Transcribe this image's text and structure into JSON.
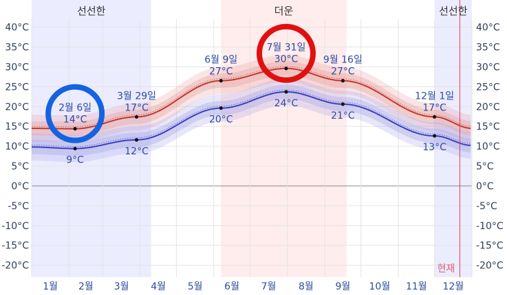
{
  "chart_data": {
    "type": "line",
    "title": "",
    "ylim": [
      -23,
      42
    ],
    "y_ticks": [
      -20,
      -15,
      -10,
      -5,
      0,
      5,
      10,
      15,
      20,
      25,
      30,
      35,
      40
    ],
    "y_tick_labels": [
      "-20°C",
      "-15°C",
      "-10°C",
      "-5°C",
      "0°C",
      "5°C",
      "10°C",
      "15°C",
      "20°C",
      "25°C",
      "30°C",
      "35°C",
      "40°C"
    ],
    "months": [
      "1월",
      "2월",
      "3월",
      "4월",
      "5월",
      "6월",
      "7월",
      "8월",
      "9월",
      "10월",
      "11월",
      "12월"
    ],
    "seasons": [
      {
        "label": "선선한",
        "start_day": 1,
        "end_day": 100,
        "color": "#dcdcff"
      },
      {
        "label": "더운",
        "start_day": 158,
        "end_day": 262,
        "color": "#ffdcdc"
      },
      {
        "label": "선선한",
        "start_day": 335,
        "end_day": 366,
        "color": "#dcdcff"
      }
    ],
    "now_label": "현재",
    "now_day": 356,
    "series": [
      {
        "key": "high",
        "color": "#c0392b",
        "band_color": "#e8a0a0",
        "x": [
          1,
          37,
          88,
          158,
          212,
          259,
          335,
          366
        ],
        "values": [
          14.5,
          14.4,
          17.4,
          26.5,
          29.6,
          26.5,
          17.4,
          14.5
        ]
      },
      {
        "key": "low",
        "color": "#3a3fc0",
        "band_color": "#a8a8e8",
        "x": [
          1,
          37,
          88,
          158,
          212,
          259,
          335,
          366
        ],
        "values": [
          9.8,
          9.4,
          11.6,
          19.6,
          23.7,
          20.6,
          12.6,
          10.2
        ]
      }
    ],
    "annotations": [
      {
        "day": 37,
        "value": 14.4,
        "date": "2월 6일",
        "temp": "14°C",
        "pos": "above",
        "circle": "#1463e0"
      },
      {
        "day": 37,
        "value": 9.4,
        "temp": "9°C",
        "pos": "below"
      },
      {
        "day": 88,
        "value": 17.4,
        "date": "3월 29일",
        "temp": "17°C",
        "pos": "above"
      },
      {
        "day": 88,
        "value": 11.6,
        "temp": "12°C",
        "pos": "below"
      },
      {
        "day": 158,
        "value": 26.5,
        "date": "6월 9일",
        "temp": "27°C",
        "pos": "above"
      },
      {
        "day": 158,
        "value": 19.6,
        "temp": "20°C",
        "pos": "below"
      },
      {
        "day": 212,
        "value": 29.6,
        "date": "7월 31일",
        "temp": "30°C",
        "pos": "above",
        "circle": "#e01010"
      },
      {
        "day": 212,
        "value": 23.7,
        "temp": "24°C",
        "pos": "below"
      },
      {
        "day": 259,
        "value": 26.5,
        "date": "9월 16일",
        "temp": "27°C",
        "pos": "above"
      },
      {
        "day": 259,
        "value": 20.6,
        "temp": "21°C",
        "pos": "below"
      },
      {
        "day": 335,
        "value": 17.4,
        "date": "12월 1일",
        "temp": "17°C",
        "pos": "above"
      },
      {
        "day": 335,
        "value": 12.6,
        "temp": "13°C",
        "pos": "below"
      }
    ]
  }
}
